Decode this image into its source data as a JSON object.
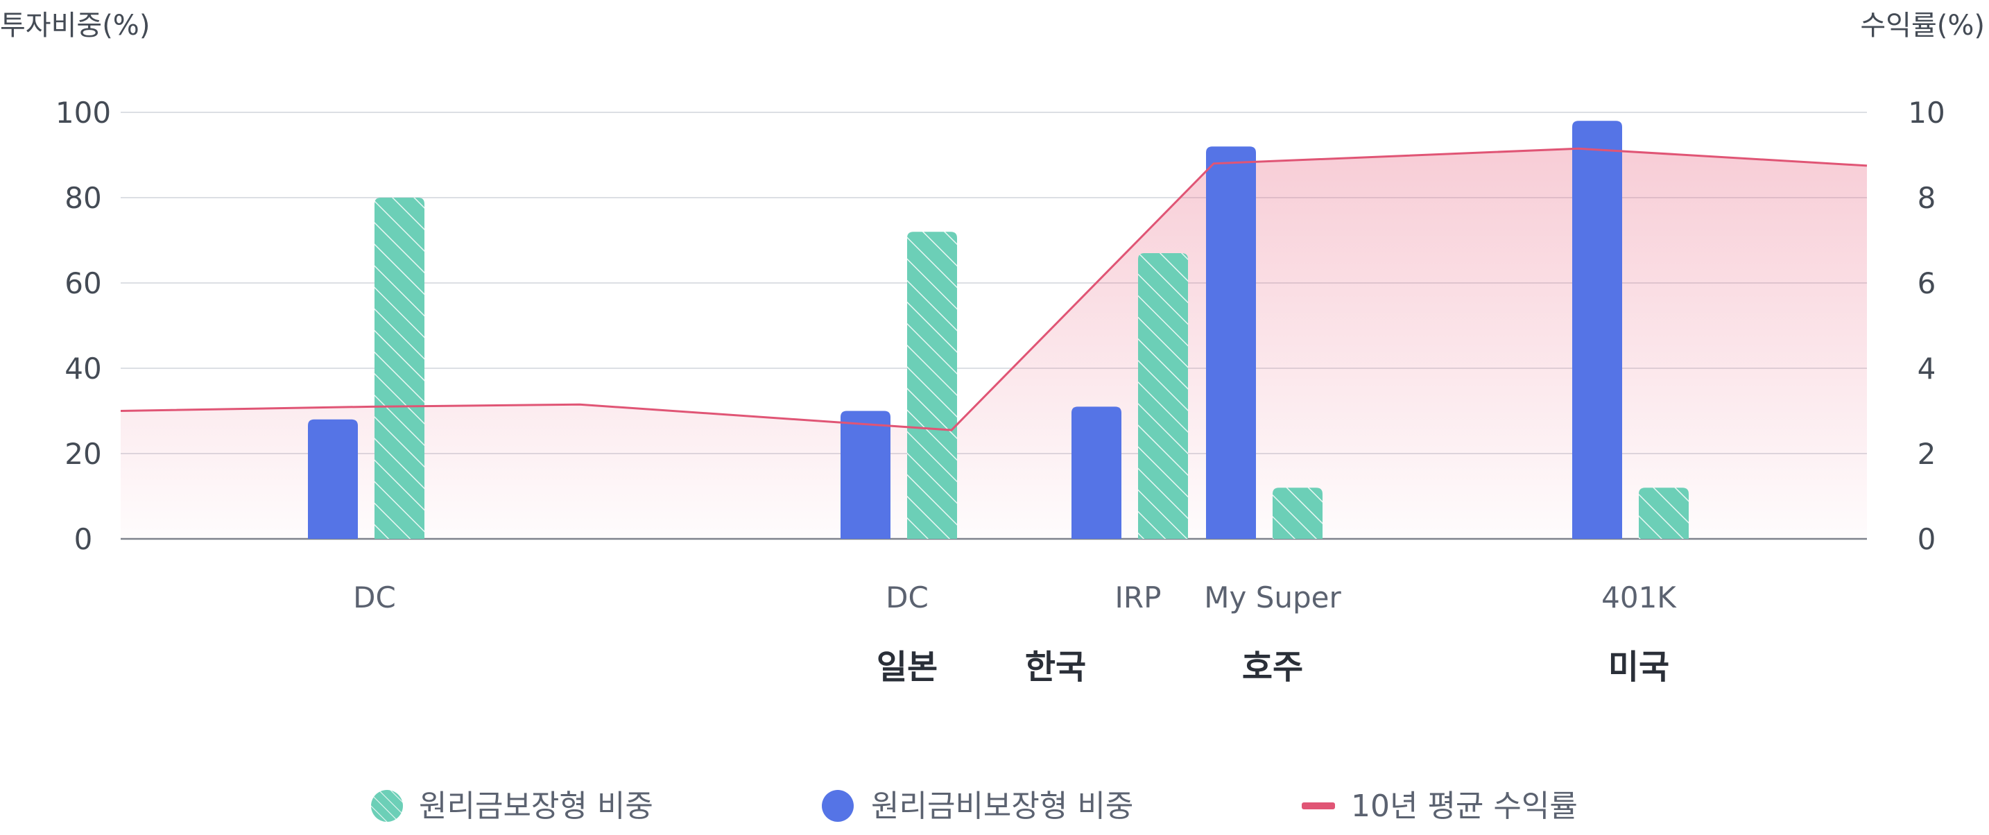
{
  "chart_data": {
    "type": "bar",
    "left_axis_title": "투자비중(%)",
    "right_axis_title": "수익률(%)",
    "left_ticks": [
      "100",
      "80",
      "60",
      "40",
      "20",
      "0"
    ],
    "right_ticks": [
      "10",
      "8",
      "6",
      "4",
      "2",
      "0"
    ],
    "ylim_left": [
      0,
      100
    ],
    "ylim_right": [
      0,
      10
    ],
    "grid": true,
    "legend_position": "bottom",
    "categories": [
      {
        "label": "DC",
        "country": "",
        "nonguaranteed": 28,
        "guaranteed": 80
      },
      {
        "label": "DC",
        "country": "일본",
        "nonguaranteed": 30,
        "guaranteed": 72
      },
      {
        "label": "IRP",
        "country": "",
        "nonguaranteed": 31,
        "guaranteed": 67
      },
      {
        "label": "My Super",
        "country": "호주",
        "nonguaranteed": 92,
        "guaranteed": 12
      },
      {
        "label": "401K",
        "country": "미국",
        "nonguaranteed": 98,
        "guaranteed": 12
      }
    ],
    "extra_country_labels": [
      "한국"
    ],
    "series": [
      {
        "name": "원리금보장형 비중",
        "key": "guaranteed",
        "color": "#6ccfb7",
        "pattern": "hatched"
      },
      {
        "name": "원리금비보장형 비중",
        "key": "nonguaranteed",
        "color": "#5574e6"
      },
      {
        "name": "10년 평균 수익률",
        "type": "area-line",
        "color": "#e05575",
        "points": [
          3.0,
          3.1,
          3.15,
          2.55,
          8.8,
          9.15,
          8.75
        ]
      }
    ]
  }
}
